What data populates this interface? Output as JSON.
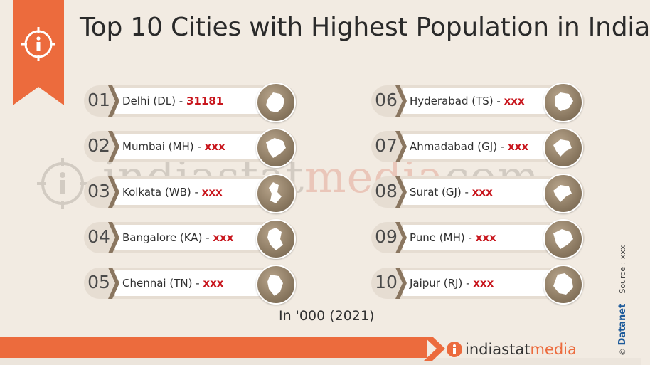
{
  "title": "Top 10 Cities with Highest Population in India",
  "unit_note": "In '000  (2021)",
  "watermark": {
    "left": "indiastat",
    "mid": "media",
    "right": "com"
  },
  "credit": {
    "brand": "Datanet",
    "copyright": "©",
    "source": "Source : xxx"
  },
  "logo": {
    "main": "indiastat",
    "accent": "media"
  },
  "colors": {
    "accent": "#ec6b3d",
    "value": "#c8161d",
    "brand_blue": "#1d5a9a"
  },
  "cities": [
    {
      "rank": "01",
      "name": "Delhi (DL) - ",
      "value": "31181",
      "icon": "delhi-map-icon"
    },
    {
      "rank": "02",
      "name": "Mumbai (MH) - ",
      "value": "xxx",
      "icon": "maharashtra-map-icon"
    },
    {
      "rank": "03",
      "name": "Kolkata (WB) - ",
      "value": "xxx",
      "icon": "west-bengal-map-icon"
    },
    {
      "rank": "04",
      "name": "Bangalore (KA) - ",
      "value": "xxx",
      "icon": "karnataka-map-icon"
    },
    {
      "rank": "05",
      "name": "Chennai (TN) - ",
      "value": "xxx",
      "icon": "tamil-nadu-map-icon"
    },
    {
      "rank": "06",
      "name": "Hyderabad (TS) - ",
      "value": "xxx",
      "icon": "telangana-map-icon"
    },
    {
      "rank": "07",
      "name": "Ahmadabad (GJ) - ",
      "value": "xxx",
      "icon": "gujarat-map-icon"
    },
    {
      "rank": "08",
      "name": "Surat (GJ) - ",
      "value": "xxx",
      "icon": "gujarat-map-icon"
    },
    {
      "rank": "09",
      "name": "Pune (MH) - ",
      "value": "xxx",
      "icon": "maharashtra-map-icon"
    },
    {
      "rank": "10",
      "name": "Jaipur (RJ) - ",
      "value": "xxx",
      "icon": "rajasthan-map-icon"
    }
  ]
}
